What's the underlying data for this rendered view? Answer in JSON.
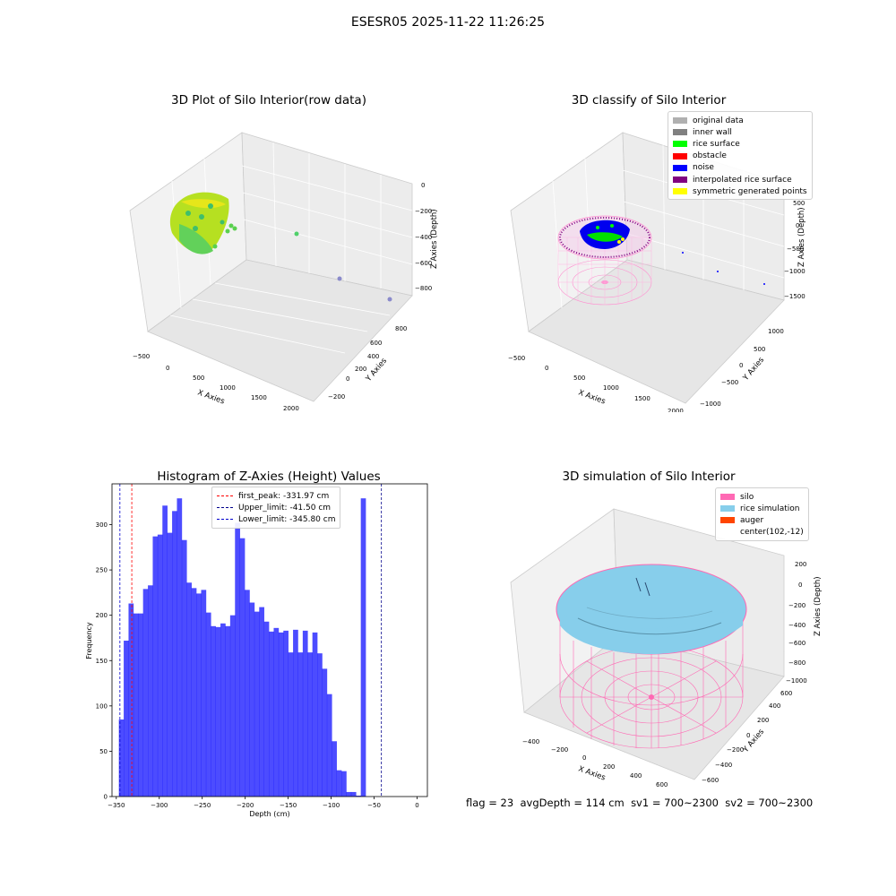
{
  "figure_title": "ESESR05 2025-11-22 11:26:25",
  "panels": {
    "raw": {
      "title": "3D Plot of Silo Interior(row data)",
      "x_label": "X Axies",
      "y_label": "Y Axies",
      "z_label": "Z Axies (Depth)",
      "x_ticks": [
        "−500",
        "0",
        "500",
        "1000",
        "1500",
        "2000"
      ],
      "y_ticks": [
        "−200",
        "0",
        "200",
        "400",
        "600",
        "800"
      ],
      "z_ticks": [
        "0",
        "−200",
        "−400",
        "−600",
        "−800"
      ]
    },
    "classify": {
      "title": "3D classify of Silo Interior",
      "x_label": "X Axies",
      "y_label": "Y Axies",
      "z_label": "Z Axies (Depth)",
      "x_ticks": [
        "−500",
        "0",
        "500",
        "1000",
        "1500",
        "2000"
      ],
      "y_ticks": [
        "−1000",
        "−500",
        "0",
        "500",
        "1000"
      ],
      "z_ticks": [
        "500",
        "0",
        "−500",
        "−1000",
        "−1500"
      ],
      "legend": [
        {
          "label": "original data",
          "color": "#b0b0b0"
        },
        {
          "label": "inner wall",
          "color": "#808080"
        },
        {
          "label": "rice surface",
          "color": "#00ff00"
        },
        {
          "label": "obstacle",
          "color": "#ff0000"
        },
        {
          "label": "noise",
          "color": "#0000ff"
        },
        {
          "label": "interpolated rice surface",
          "color": "#800080"
        },
        {
          "label": "symmetric generated points",
          "color": "#ffff00"
        }
      ]
    },
    "simulation": {
      "title": "3D simulation of Silo Interior",
      "x_label": "X Axies",
      "y_label": "Y Axies",
      "z_label": "Z Axies (Depth)",
      "x_ticks": [
        "−400",
        "−200",
        "0",
        "200",
        "400",
        "600"
      ],
      "y_ticks": [
        "−600",
        "−400",
        "−200",
        "0",
        "200",
        "400",
        "600"
      ],
      "z_ticks": [
        "200",
        "0",
        "−200",
        "−400",
        "−600",
        "−800",
        "−1000"
      ],
      "legend": [
        {
          "label": "silo",
          "color": "#ff69b4"
        },
        {
          "label": "rice simulation",
          "color": "#87ceeb"
        },
        {
          "label": "auger",
          "color": "#ff4500"
        },
        {
          "label": "center(102,-12)",
          "color": ""
        }
      ],
      "status": {
        "flag": "flag = 23",
        "avg_depth": "avgDepth = 114 cm",
        "sv1": "sv1 = 700~2300",
        "sv2": "sv2 = 700~2300"
      }
    }
  },
  "chart_data": [
    {
      "type": "scatter",
      "title": "3D Plot of Silo Interior(row data)",
      "xlabel": "X Axies",
      "ylabel": "Y Axies",
      "zlabel": "Z Axies (Depth)",
      "xlim": [
        -550,
        2100
      ],
      "ylim": [
        -300,
        900
      ],
      "zlim": [
        -950,
        50
      ]
    },
    {
      "type": "scatter",
      "title": "3D classify of Silo Interior",
      "xlabel": "X Axies",
      "ylabel": "Y Axies",
      "zlabel": "Z Axies (Depth)",
      "series": [
        {
          "name": "original data"
        },
        {
          "name": "inner wall"
        },
        {
          "name": "rice surface"
        },
        {
          "name": "obstacle"
        },
        {
          "name": "noise"
        },
        {
          "name": "interpolated rice surface"
        },
        {
          "name": "symmetric generated points"
        }
      ]
    },
    {
      "type": "bar",
      "title": "Histogram of Z-Axies (Height) Values",
      "xlabel": "Depth (cm)",
      "ylabel": "Frequency",
      "xlim": [
        -355,
        12
      ],
      "ylim": [
        0,
        345
      ],
      "x_ticks": [
        -350,
        -300,
        -250,
        -200,
        -150,
        -100,
        -50,
        0
      ],
      "y_ticks": [
        0,
        50,
        100,
        150,
        200,
        250,
        300
      ],
      "bin_start": -347.0,
      "bin_width": 5.63,
      "bar_color": "#0000ff",
      "values": [
        85,
        172,
        213,
        202,
        202,
        229,
        233,
        287,
        289,
        321,
        291,
        315,
        329,
        283,
        236,
        230,
        224,
        228,
        203,
        188,
        187,
        191,
        188,
        200,
        302,
        285,
        228,
        214,
        204,
        209,
        193,
        182,
        186,
        181,
        183,
        159,
        184,
        159,
        183,
        159,
        181,
        158,
        141,
        113,
        61,
        29,
        28,
        5,
        5,
        1,
        329
      ],
      "reference_lines": [
        {
          "label": "first_peak: -331.97 cm",
          "x": -331.97,
          "color": "#ff0000"
        },
        {
          "label": "Upper_limit: -41.50 cm",
          "x": -41.5,
          "color": "#00008b"
        },
        {
          "label": "Lower_limit: -345.80 cm",
          "x": -345.8,
          "color": "#0000cd"
        }
      ]
    },
    {
      "type": "scatter",
      "title": "3D simulation of Silo Interior",
      "xlabel": "X Axies",
      "ylabel": "Y Axies",
      "zlabel": "Z Axies (Depth)",
      "series": [
        {
          "name": "silo"
        },
        {
          "name": "rice simulation"
        },
        {
          "name": "auger"
        },
        {
          "name": "center(102,-12)"
        }
      ]
    }
  ]
}
